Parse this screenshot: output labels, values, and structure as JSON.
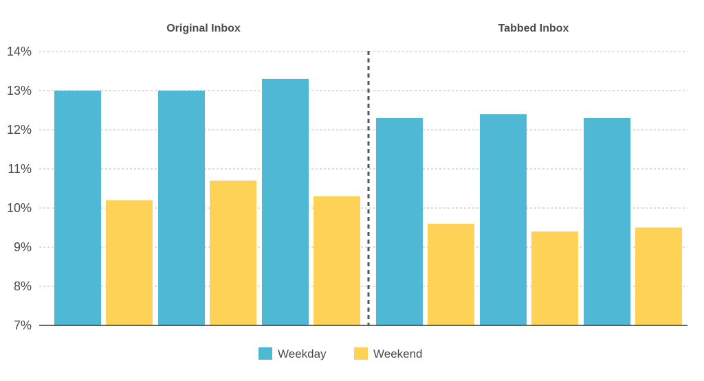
{
  "chart_data": {
    "type": "bar",
    "groups": [
      {
        "title": "Original Inbox",
        "pairs": 3
      },
      {
        "title": "Tabbed Inbox",
        "pairs": 3
      }
    ],
    "series": [
      {
        "name": "Weekday",
        "color": "#4fb8d5",
        "values": [
          13.0,
          13.0,
          13.3,
          12.3,
          12.4,
          12.3
        ]
      },
      {
        "name": "Weekend",
        "color": "#fdd257",
        "values": [
          10.2,
          10.7,
          10.3,
          9.6,
          9.4,
          9.5
        ]
      }
    ],
    "ylim": [
      7,
      14
    ],
    "yticks": [
      "7%",
      "8%",
      "9%",
      "10%",
      "11%",
      "12%",
      "13%",
      "14%"
    ],
    "grid": true,
    "legend_position": "bottom-center"
  }
}
